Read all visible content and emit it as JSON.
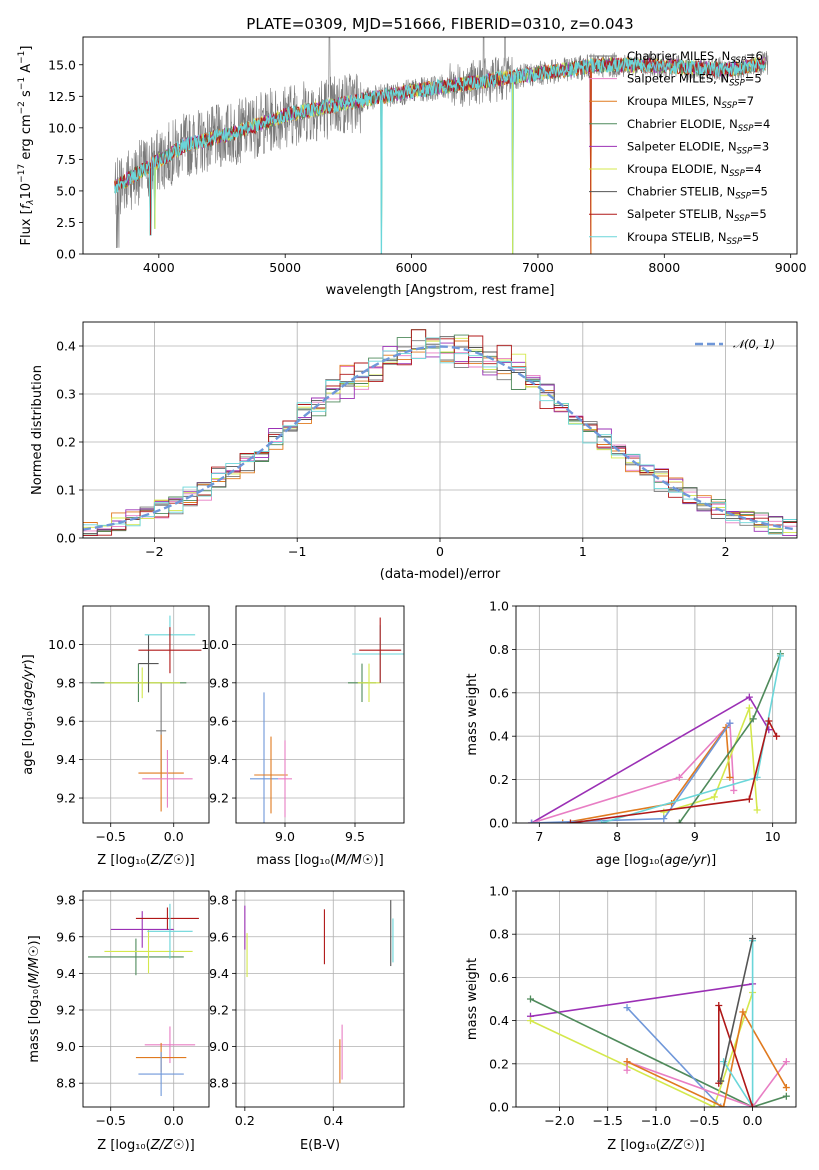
{
  "figure": {
    "title": "PLATE=0309, MJD=51666, FIBERID=0310, z=0.043"
  },
  "colors": {
    "chabrier_miles": "#7a7a7a",
    "salpeter_miles": "#e87ec4",
    "kroupa_miles": "#e07a1f",
    "chabrier_elodie": "#4f8a5b",
    "salpeter_elodie": "#9b30b5",
    "kroupa_elodie": "#d4e84c",
    "chabrier_stelib": "#555555",
    "salpeter_stelib": "#b01818",
    "kroupa_stelib": "#6ad6d9",
    "normal_curve": "#6f97d9"
  },
  "chart_data": [
    {
      "id": "spectrum",
      "type": "line",
      "xlabel": "wavelength [Angstrom, rest frame]",
      "ylabel": "Flux [f_λ10^-17 erg cm^-2 s^-1 A^-1]",
      "xlim": [
        3400,
        9050
      ],
      "ylim": [
        0,
        17.2
      ],
      "xticks": [
        4000,
        5000,
        6000,
        7000,
        8000,
        9000
      ],
      "yticks": [
        0.0,
        2.5,
        5.0,
        7.5,
        10.0,
        12.5,
        15.0
      ],
      "legend_position": "right",
      "legend": [
        {
          "label": "Chabrier MILES, N",
          "sub": "SSP",
          "suffix": "=6",
          "color_key": "chabrier_miles"
        },
        {
          "label": "Salpeter MILES, N",
          "sub": "SSP",
          "suffix": "=5",
          "color_key": "salpeter_miles"
        },
        {
          "label": "Kroupa MILES, N",
          "sub": "SSP",
          "suffix": "=7",
          "color_key": "kroupa_miles"
        },
        {
          "label": "Chabrier ELODIE, N",
          "sub": "SSP",
          "suffix": "=4",
          "color_key": "chabrier_elodie"
        },
        {
          "label": "Salpeter ELODIE, N",
          "sub": "SSP",
          "suffix": "=3",
          "color_key": "salpeter_elodie"
        },
        {
          "label": "Kroupa ELODIE, N",
          "sub": "SSP",
          "suffix": "=4",
          "color_key": "kroupa_elodie"
        },
        {
          "label": "Chabrier STELIB, N",
          "sub": "SSP",
          "suffix": "=5",
          "color_key": "chabrier_stelib"
        },
        {
          "label": "Salpeter STELIB, N",
          "sub": "SSP",
          "suffix": "=5",
          "color_key": "salpeter_stelib"
        },
        {
          "label": "Kroupa STELIB, N",
          "sub": "SSP",
          "suffix": "=5",
          "color_key": "kroupa_stelib"
        }
      ],
      "continuum": [
        [
          3650,
          5.3
        ],
        [
          3900,
          6.8
        ],
        [
          4200,
          8.6
        ],
        [
          4600,
          9.6
        ],
        [
          5000,
          11.0
        ],
        [
          5500,
          12.0
        ],
        [
          6000,
          12.9
        ],
        [
          6500,
          13.6
        ],
        [
          7000,
          14.3
        ],
        [
          7500,
          15.0
        ],
        [
          8000,
          14.9
        ],
        [
          8500,
          14.6
        ],
        [
          8800,
          15.1
        ]
      ],
      "absorption_lines": [
        [
          3935,
          1.5
        ],
        [
          3970,
          2.0
        ],
        [
          5760,
          0.0
        ],
        [
          6800,
          0.0
        ],
        [
          7420,
          0.0
        ]
      ]
    },
    {
      "id": "residuals",
      "type": "histogram",
      "xlabel": "(data-model)/error",
      "ylabel": "Normed distribution",
      "xlim": [
        -2.5,
        2.5
      ],
      "ylim": [
        0,
        0.45
      ],
      "xticks": [
        -2,
        -1,
        0,
        1,
        2
      ],
      "yticks": [
        0.0,
        0.1,
        0.2,
        0.3,
        0.4
      ],
      "legend_label": "𝒩(0, 1)",
      "legend_position": "top-right",
      "bin_width": 0.1,
      "n_models": 9
    },
    {
      "id": "age_vs_Z",
      "type": "errorbar",
      "xlabel": "Z [log₁₀(Z/Z☉)]",
      "ylabel": "age  [log₁₀(age/yr)]",
      "xlim": [
        -0.72,
        0.28
      ],
      "ylim": [
        9.07,
        10.2
      ],
      "xticks": [
        -0.5,
        0.0
      ],
      "yticks": [
        9.2,
        9.4,
        9.6,
        9.8,
        10.0
      ],
      "points": [
        {
          "x": -0.28,
          "y": 9.8,
          "xerr": 0.38,
          "yerr": 0.1,
          "color_key": "chabrier_elodie"
        },
        {
          "x": -0.25,
          "y": 9.8,
          "xerr": 0.3,
          "yerr": 0.08,
          "color_key": "kroupa_elodie"
        },
        {
          "x": -0.2,
          "y": 9.9,
          "xerr": 0.08,
          "yerr": 0.15,
          "color_key": "chabrier_stelib"
        },
        {
          "x": -0.03,
          "y": 10.05,
          "xerr": 0.2,
          "yerr": 0.1,
          "color_key": "kroupa_stelib"
        },
        {
          "x": -0.03,
          "y": 9.97,
          "xerr": 0.25,
          "yerr": 0.12,
          "color_key": "salpeter_stelib"
        },
        {
          "x": -0.1,
          "y": 9.55,
          "xerr": 0.04,
          "yerr": 0.25,
          "color_key": "chabrier_miles"
        },
        {
          "x": -0.1,
          "y": 9.33,
          "xerr": 0.18,
          "yerr": 0.2,
          "color_key": "kroupa_miles"
        },
        {
          "x": -0.05,
          "y": 9.3,
          "xerr": 0.2,
          "yerr": 0.15,
          "color_key": "salpeter_miles"
        }
      ]
    },
    {
      "id": "age_vs_mass",
      "type": "errorbar",
      "xlabel": "mass [log₁₀(M/M☉)]",
      "ylabel": "",
      "xlim": [
        8.65,
        9.85
      ],
      "ylim": [
        9.07,
        10.2
      ],
      "xticks": [
        9.0,
        9.5
      ],
      "yticks": [
        9.2,
        9.4,
        9.6,
        9.8,
        10.0
      ],
      "points": [
        {
          "x": 8.85,
          "y": 9.3,
          "xerr": 0.1,
          "yerr": 0.45,
          "color_key": "normal_curve"
        },
        {
          "x": 8.9,
          "y": 9.32,
          "xerr": 0.12,
          "yerr": 0.2,
          "color_key": "kroupa_miles"
        },
        {
          "x": 9.0,
          "y": 9.3,
          "xerr": 0.05,
          "yerr": 0.2,
          "color_key": "salpeter_miles"
        },
        {
          "x": 9.55,
          "y": 9.8,
          "xerr": 0.1,
          "yerr": 0.1,
          "color_key": "chabrier_elodie"
        },
        {
          "x": 9.6,
          "y": 9.8,
          "xerr": 0.08,
          "yerr": 0.1,
          "color_key": "kroupa_elodie"
        },
        {
          "x": 9.68,
          "y": 9.95,
          "xerr": 0.2,
          "yerr": 0.15,
          "color_key": "kroupa_stelib"
        },
        {
          "x": 9.68,
          "y": 9.97,
          "xerr": 0.15,
          "yerr": 0.17,
          "color_key": "salpeter_stelib"
        }
      ]
    },
    {
      "id": "weight_vs_age",
      "type": "line",
      "xlabel": "age  [log₁₀(age/yr)]",
      "ylabel": "mass weight",
      "xlim": [
        6.7,
        10.3
      ],
      "ylim": [
        0,
        1.0
      ],
      "xticks": [
        7,
        8,
        9,
        10
      ],
      "yticks": [
        0.0,
        0.2,
        0.4,
        0.6,
        0.8,
        1.0
      ],
      "series": [
        {
          "color_key": "salpeter_elodie",
          "x": [
            6.9,
            9.7,
            9.95
          ],
          "y": [
            0.0,
            0.58,
            0.43
          ]
        },
        {
          "color_key": "salpeter_miles",
          "x": [
            6.9,
            8.8,
            9.45,
            9.5
          ],
          "y": [
            0.0,
            0.21,
            0.46,
            0.15
          ]
        },
        {
          "color_key": "kroupa_miles",
          "x": [
            7.3,
            8.7,
            9.4,
            9.45
          ],
          "y": [
            0.0,
            0.09,
            0.44,
            0.21
          ]
        },
        {
          "color_key": "kroupa_elodie",
          "x": [
            8.6,
            9.25,
            9.7,
            9.8
          ],
          "y": [
            0.05,
            0.12,
            0.53,
            0.06
          ]
        },
        {
          "color_key": "normal_curve",
          "x": [
            6.9,
            8.6,
            9.45
          ],
          "y": [
            0.0,
            0.02,
            0.46
          ]
        },
        {
          "color_key": "chabrier_elodie",
          "x": [
            8.8,
            9.75,
            10.1
          ],
          "y": [
            0.0,
            0.48,
            0.78
          ]
        },
        {
          "color_key": "kroupa_stelib",
          "x": [
            7.8,
            9.8,
            10.1
          ],
          "y": [
            0.0,
            0.21,
            0.77
          ]
        },
        {
          "color_key": "salpeter_stelib",
          "x": [
            7.4,
            9.7,
            9.95,
            10.05
          ],
          "y": [
            0.0,
            0.11,
            0.47,
            0.4
          ]
        }
      ]
    },
    {
      "id": "mass_vs_Z",
      "type": "errorbar",
      "xlabel": "Z [log₁₀(Z/Z☉)]",
      "ylabel": "mass [log₁₀(M/M☉)]",
      "xlim": [
        -0.72,
        0.28
      ],
      "ylim": [
        8.67,
        9.85
      ],
      "xticks": [
        -0.5,
        0.0
      ],
      "yticks": [
        8.8,
        9.0,
        9.2,
        9.4,
        9.6,
        9.8
      ],
      "points": [
        {
          "x": -0.3,
          "y": 9.49,
          "xerr": 0.38,
          "yerr": 0.1,
          "color_key": "chabrier_elodie"
        },
        {
          "x": -0.2,
          "y": 9.52,
          "xerr": 0.35,
          "yerr": 0.12,
          "color_key": "kroupa_elodie"
        },
        {
          "x": -0.25,
          "y": 9.64,
          "xerr": 0.25,
          "yerr": 0.1,
          "color_key": "salpeter_elodie"
        },
        {
          "x": -0.05,
          "y": 9.7,
          "xerr": 0.25,
          "yerr": 0.06,
          "color_key": "salpeter_stelib"
        },
        {
          "x": -0.03,
          "y": 9.63,
          "xerr": 0.18,
          "yerr": 0.15,
          "color_key": "kroupa_stelib"
        },
        {
          "x": -0.03,
          "y": 9.01,
          "xerr": 0.2,
          "yerr": 0.1,
          "color_key": "salpeter_miles"
        },
        {
          "x": -0.1,
          "y": 8.94,
          "xerr": 0.2,
          "yerr": 0.08,
          "color_key": "kroupa_miles"
        },
        {
          "x": -0.1,
          "y": 8.85,
          "xerr": 0.18,
          "yerr": 0.12,
          "color_key": "normal_curve"
        }
      ]
    },
    {
      "id": "mass_vs_ebv",
      "type": "errorbar",
      "xlabel": "E(B-V)",
      "ylabel": "",
      "xlim": [
        0.18,
        0.56
      ],
      "ylim": [
        8.67,
        9.85
      ],
      "xticks": [
        0.2,
        0.4
      ],
      "yticks": [
        8.8,
        9.0,
        9.2,
        9.4,
        9.6,
        9.8
      ],
      "points": [
        {
          "x": 0.2,
          "y": 9.65,
          "xerr": 0,
          "yerr": 0.12,
          "color_key": "salpeter_elodie"
        },
        {
          "x": 0.205,
          "y": 9.5,
          "xerr": 0,
          "yerr": 0.12,
          "color_key": "kroupa_elodie"
        },
        {
          "x": 0.38,
          "y": 9.6,
          "xerr": 0,
          "yerr": 0.15,
          "color_key": "salpeter_stelib"
        },
        {
          "x": 0.42,
          "y": 8.97,
          "xerr": 0,
          "yerr": 0.15,
          "color_key": "salpeter_miles"
        },
        {
          "x": 0.415,
          "y": 8.92,
          "xerr": 0,
          "yerr": 0.12,
          "color_key": "kroupa_miles"
        },
        {
          "x": 0.53,
          "y": 9.62,
          "xerr": 0,
          "yerr": 0.18,
          "color_key": "chabrier_stelib"
        },
        {
          "x": 0.535,
          "y": 9.58,
          "xerr": 0,
          "yerr": 0.12,
          "color_key": "kroupa_stelib"
        }
      ]
    },
    {
      "id": "weight_vs_Z",
      "type": "line",
      "xlabel": "Z [log₁₀(Z/Z☉)]",
      "ylabel": "mass weight",
      "xlim": [
        -2.45,
        0.45
      ],
      "ylim": [
        0,
        1.0
      ],
      "xticks": [
        -2.0,
        -1.5,
        -1.0,
        -0.5,
        0.0
      ],
      "yticks": [
        0.0,
        0.2,
        0.4,
        0.6,
        0.8,
        1.0
      ],
      "series": [
        {
          "color_key": "salpeter_elodie",
          "x": [
            -2.3,
            0.0
          ],
          "y": [
            0.42,
            0.57
          ]
        },
        {
          "color_key": "chabrier_elodie",
          "x": [
            -2.3,
            0.0,
            0.35
          ],
          "y": [
            0.5,
            0.0,
            0.05
          ]
        },
        {
          "color_key": "kroupa_elodie",
          "x": [
            -2.3,
            -0.4,
            0.0
          ],
          "y": [
            0.4,
            0.0,
            0.53
          ]
        },
        {
          "color_key": "normal_curve",
          "x": [
            -1.3,
            -0.33,
            0.0
          ],
          "y": [
            0.46,
            0.0,
            0.0
          ]
        },
        {
          "color_key": "salpeter_miles",
          "x": [
            -1.3,
            -1.3,
            0.0,
            0.35
          ],
          "y": [
            0.17,
            0.21,
            0.0,
            0.21
          ]
        },
        {
          "color_key": "kroupa_miles",
          "x": [
            -1.3,
            -0.3,
            -0.1,
            0.35
          ],
          "y": [
            0.21,
            0.0,
            0.44,
            0.09
          ]
        },
        {
          "color_key": "kroupa_stelib",
          "x": [
            -0.3,
            0.0,
            0.0
          ],
          "y": [
            0.21,
            0.0,
            0.77
          ]
        },
        {
          "color_key": "salpeter_stelib",
          "x": [
            -0.35,
            -0.35,
            0.0
          ],
          "y": [
            0.11,
            0.47,
            0.0
          ]
        },
        {
          "color_key": "chabrier_stelib",
          "x": [
            -0.33,
            0.0
          ],
          "y": [
            0.12,
            0.78
          ]
        }
      ]
    }
  ]
}
